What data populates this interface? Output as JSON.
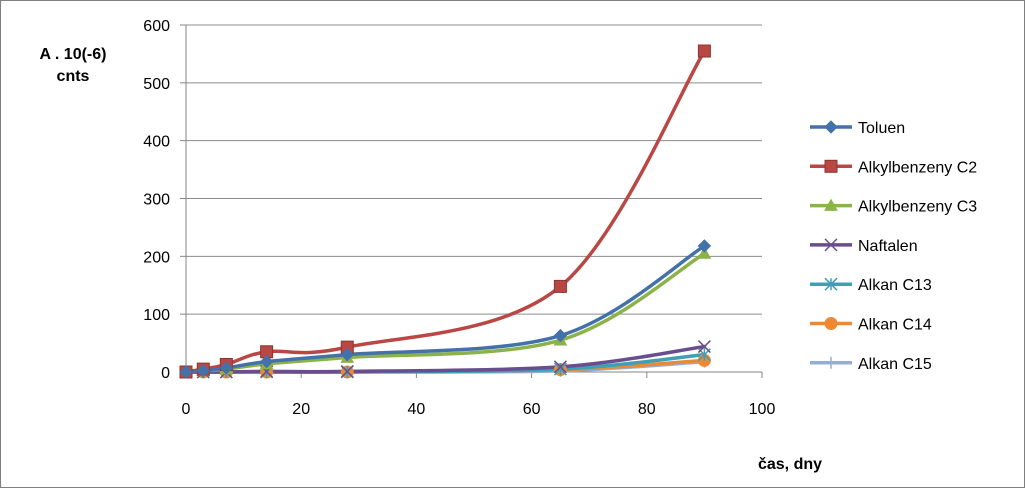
{
  "chart_data": {
    "type": "line",
    "title": "",
    "ylabel_line1": "A . 10(-6)",
    "ylabel_line2": "cnts",
    "xlabel": "čas, dny",
    "xlim": [
      0,
      100
    ],
    "ylim": [
      0,
      600
    ],
    "x_ticks": [
      0,
      20,
      40,
      60,
      80,
      100
    ],
    "y_ticks": [
      0,
      100,
      200,
      300,
      400,
      500,
      600
    ],
    "grid": "horizontal",
    "legend_position": "right",
    "x": [
      0,
      3,
      7,
      14,
      28,
      65,
      90
    ],
    "series": [
      {
        "name": "Toluen",
        "color": "#4472a8",
        "marker": "diamond",
        "values": [
          0,
          2,
          7,
          18,
          30,
          63,
          218
        ]
      },
      {
        "name": "Alkylbenzeny C2",
        "color": "#b94744",
        "marker": "square",
        "values": [
          0,
          5,
          13,
          35,
          43,
          148,
          555
        ]
      },
      {
        "name": "Alkylbenzeny C3",
        "color": "#8cb34a",
        "marker": "triangle",
        "values": [
          0,
          2,
          5,
          14,
          25,
          55,
          205
        ]
      },
      {
        "name": "Naftalen",
        "color": "#6a4d8f",
        "marker": "x",
        "values": [
          0,
          0,
          0,
          1,
          1,
          9,
          44
        ]
      },
      {
        "name": "Alkan C13",
        "color": "#3da0b5",
        "marker": "star",
        "values": [
          0,
          0,
          0,
          0,
          0,
          5,
          30
        ]
      },
      {
        "name": "Alkan C14",
        "color": "#e88a38",
        "marker": "circle",
        "values": [
          0,
          0,
          0,
          0,
          0,
          4,
          20
        ]
      },
      {
        "name": "Alkan C15",
        "color": "#95aed4",
        "marker": "plus",
        "values": [
          0,
          0,
          0,
          0,
          0,
          2,
          18
        ]
      }
    ]
  }
}
